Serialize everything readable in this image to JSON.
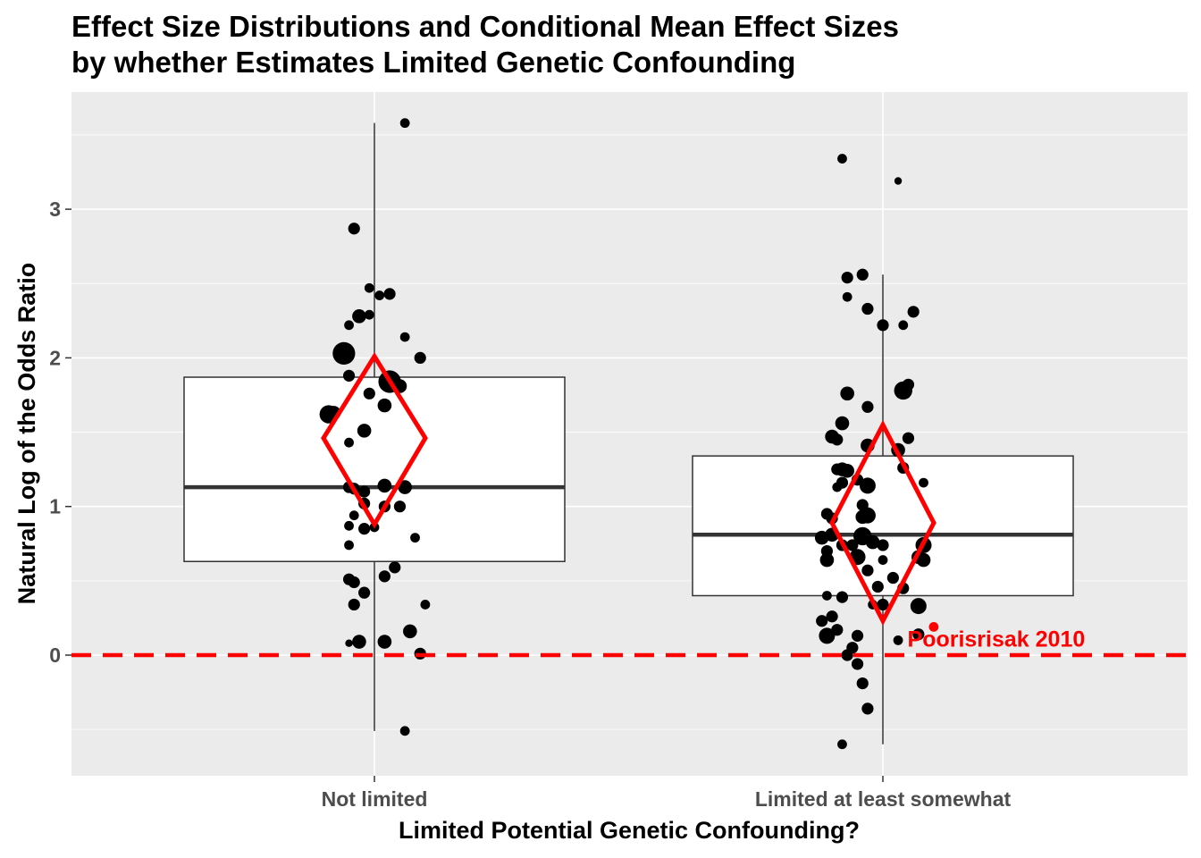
{
  "chart_data": {
    "type": "box",
    "title_lines": [
      "Effect Size Distributions and Conditional Mean Effect Sizes",
      "by whether Estimates Limited Genetic Confounding"
    ],
    "xlabel": "Limited Potential Genetic Confounding?",
    "ylabel": "Natural Log of the Odds Ratio",
    "ylim": [
      -0.8,
      3.8
    ],
    "yticks": [
      0,
      1,
      2,
      3
    ],
    "grid": true,
    "categories": [
      "Not limited",
      "Limited at least somewhat"
    ],
    "boxes": [
      {
        "category": "Not limited",
        "q1": 0.63,
        "median": 1.13,
        "q3": 1.87,
        "whisker_low": -0.51,
        "whisker_high": 3.58
      },
      {
        "category": "Limited at least somewhat",
        "q1": 0.4,
        "median": 0.81,
        "q3": 1.34,
        "whisker_low": -0.6,
        "whisker_high": 2.56
      }
    ],
    "mean_diamonds": [
      {
        "category": "Not limited",
        "mean": 1.46,
        "ci_low": 0.88,
        "ci_high": 2.01
      },
      {
        "category": "Limited at least somewhat",
        "mean": 0.89,
        "ci_low": 0.23,
        "ci_high": 1.55
      }
    ],
    "reference_line": {
      "y": 0,
      "color": "#ff0000",
      "style": "dashed"
    },
    "annotation": {
      "text": "Poorisrisak 2010",
      "x_category": "Limited at least somewhat",
      "x_offset": 0.1,
      "y": 0.19,
      "color": "#ff0000"
    },
    "points": [
      {
        "group": 0,
        "x": 0.96,
        "y": 2.87,
        "size": 1.5
      },
      {
        "group": 0,
        "x": 1.06,
        "y": 3.58,
        "size": 1
      },
      {
        "group": 0,
        "x": 0.99,
        "y": 2.47,
        "size": 1
      },
      {
        "group": 0,
        "x": 1.01,
        "y": 2.42,
        "size": 1
      },
      {
        "group": 0,
        "x": 1.03,
        "y": 2.43,
        "size": 1.5
      },
      {
        "group": 0,
        "x": 0.95,
        "y": 2.22,
        "size": 1
      },
      {
        "group": 0,
        "x": 0.97,
        "y": 2.28,
        "size": 2
      },
      {
        "group": 0,
        "x": 0.99,
        "y": 2.29,
        "size": 1
      },
      {
        "group": 0,
        "x": 1.06,
        "y": 2.14,
        "size": 1
      },
      {
        "group": 0,
        "x": 0.94,
        "y": 2.03,
        "size": 4
      },
      {
        "group": 0,
        "x": 1.09,
        "y": 2.0,
        "size": 1.5
      },
      {
        "group": 0,
        "x": 0.95,
        "y": 1.88,
        "size": 1.5
      },
      {
        "group": 0,
        "x": 1.03,
        "y": 1.84,
        "size": 4
      },
      {
        "group": 0,
        "x": 1.05,
        "y": 1.81,
        "size": 2
      },
      {
        "group": 0,
        "x": 0.99,
        "y": 1.76,
        "size": 1.5
      },
      {
        "group": 0,
        "x": 1.02,
        "y": 1.68,
        "size": 2
      },
      {
        "group": 0,
        "x": 0.91,
        "y": 1.62,
        "size": 3
      },
      {
        "group": 0,
        "x": 0.92,
        "y": 1.63,
        "size": 2
      },
      {
        "group": 0,
        "x": 0.98,
        "y": 1.51,
        "size": 2
      },
      {
        "group": 0,
        "x": 0.95,
        "y": 1.43,
        "size": 1
      },
      {
        "group": 0,
        "x": 0.95,
        "y": 1.13,
        "size": 1.5
      },
      {
        "group": 0,
        "x": 0.96,
        "y": 1.12,
        "size": 1.5
      },
      {
        "group": 0,
        "x": 1.02,
        "y": 1.14,
        "size": 2
      },
      {
        "group": 0,
        "x": 1.06,
        "y": 1.13,
        "size": 2
      },
      {
        "group": 0,
        "x": 0.98,
        "y": 1.1,
        "size": 1.5
      },
      {
        "group": 0,
        "x": 0.98,
        "y": 1.02,
        "size": 1.5
      },
      {
        "group": 0,
        "x": 1.02,
        "y": 1.0,
        "size": 1.5
      },
      {
        "group": 0,
        "x": 1.05,
        "y": 1.0,
        "size": 1.5
      },
      {
        "group": 0,
        "x": 0.95,
        "y": 0.87,
        "size": 1
      },
      {
        "group": 0,
        "x": 0.98,
        "y": 0.85,
        "size": 1.5
      },
      {
        "group": 0,
        "x": 1.0,
        "y": 0.86,
        "size": 1
      },
      {
        "group": 0,
        "x": 0.96,
        "y": 0.94,
        "size": 1
      },
      {
        "group": 0,
        "x": 1.08,
        "y": 0.79,
        "size": 1
      },
      {
        "group": 0,
        "x": 0.95,
        "y": 0.74,
        "size": 1
      },
      {
        "group": 0,
        "x": 1.04,
        "y": 0.59,
        "size": 1.5
      },
      {
        "group": 0,
        "x": 1.02,
        "y": 0.53,
        "size": 1.5
      },
      {
        "group": 0,
        "x": 0.95,
        "y": 0.51,
        "size": 1.5
      },
      {
        "group": 0,
        "x": 0.96,
        "y": 0.49,
        "size": 1.5
      },
      {
        "group": 0,
        "x": 0.98,
        "y": 0.42,
        "size": 1.5
      },
      {
        "group": 0,
        "x": 0.96,
        "y": 0.34,
        "size": 1.5
      },
      {
        "group": 0,
        "x": 1.1,
        "y": 0.34,
        "size": 1
      },
      {
        "group": 0,
        "x": 1.07,
        "y": 0.16,
        "size": 2
      },
      {
        "group": 0,
        "x": 0.97,
        "y": 0.09,
        "size": 2
      },
      {
        "group": 0,
        "x": 1.02,
        "y": 0.09,
        "size": 2
      },
      {
        "group": 0,
        "x": 0.95,
        "y": 0.08,
        "size": 0.5
      },
      {
        "group": 0,
        "x": 1.09,
        "y": 0.01,
        "size": 1.5
      },
      {
        "group": 0,
        "x": 1.06,
        "y": -0.51,
        "size": 1
      },
      {
        "group": 1,
        "x": 1.92,
        "y": 3.34,
        "size": 1
      },
      {
        "group": 1,
        "x": 2.03,
        "y": 3.19,
        "size": 0.5
      },
      {
        "group": 1,
        "x": 1.93,
        "y": 2.54,
        "size": 1.5
      },
      {
        "group": 1,
        "x": 1.96,
        "y": 2.56,
        "size": 1.5
      },
      {
        "group": 1,
        "x": 1.93,
        "y": 2.41,
        "size": 1
      },
      {
        "group": 1,
        "x": 1.97,
        "y": 2.33,
        "size": 1.5
      },
      {
        "group": 1,
        "x": 2.06,
        "y": 2.31,
        "size": 1.5
      },
      {
        "group": 1,
        "x": 2.0,
        "y": 2.22,
        "size": 1.5
      },
      {
        "group": 1,
        "x": 2.04,
        "y": 2.22,
        "size": 1
      },
      {
        "group": 1,
        "x": 2.05,
        "y": 1.82,
        "size": 1.5
      },
      {
        "group": 1,
        "x": 2.04,
        "y": 1.78,
        "size": 3
      },
      {
        "group": 1,
        "x": 1.93,
        "y": 1.76,
        "size": 2
      },
      {
        "group": 1,
        "x": 1.97,
        "y": 1.67,
        "size": 1.5
      },
      {
        "group": 1,
        "x": 1.92,
        "y": 1.56,
        "size": 2
      },
      {
        "group": 1,
        "x": 1.9,
        "y": 1.47,
        "size": 2
      },
      {
        "group": 1,
        "x": 1.91,
        "y": 1.45,
        "size": 1.5
      },
      {
        "group": 1,
        "x": 2.05,
        "y": 1.46,
        "size": 1.5
      },
      {
        "group": 1,
        "x": 1.97,
        "y": 1.41,
        "size": 2
      },
      {
        "group": 1,
        "x": 2.03,
        "y": 1.38,
        "size": 2
      },
      {
        "group": 1,
        "x": 2.04,
        "y": 1.26,
        "size": 1.5
      },
      {
        "group": 1,
        "x": 1.91,
        "y": 1.25,
        "size": 1.5
      },
      {
        "group": 1,
        "x": 1.92,
        "y": 1.25,
        "size": 2
      },
      {
        "group": 1,
        "x": 1.93,
        "y": 1.24,
        "size": 2
      },
      {
        "group": 1,
        "x": 1.92,
        "y": 1.16,
        "size": 1.5
      },
      {
        "group": 1,
        "x": 1.97,
        "y": 1.14,
        "size": 2.5
      },
      {
        "group": 1,
        "x": 1.95,
        "y": 1.18,
        "size": 1.5
      },
      {
        "group": 1,
        "x": 1.91,
        "y": 1.13,
        "size": 1
      },
      {
        "group": 1,
        "x": 2.08,
        "y": 1.16,
        "size": 1
      },
      {
        "group": 1,
        "x": 1.96,
        "y": 1.01,
        "size": 1.5
      },
      {
        "group": 1,
        "x": 1.97,
        "y": 0.94,
        "size": 2.5
      },
      {
        "group": 1,
        "x": 1.89,
        "y": 0.95,
        "size": 1.5
      },
      {
        "group": 1,
        "x": 1.9,
        "y": 0.92,
        "size": 1.5
      },
      {
        "group": 1,
        "x": 1.96,
        "y": 0.93,
        "size": 2
      },
      {
        "group": 1,
        "x": 1.88,
        "y": 0.79,
        "size": 2
      },
      {
        "group": 1,
        "x": 1.9,
        "y": 0.81,
        "size": 2
      },
      {
        "group": 1,
        "x": 1.96,
        "y": 0.8,
        "size": 3
      },
      {
        "group": 1,
        "x": 1.98,
        "y": 0.76,
        "size": 2
      },
      {
        "group": 1,
        "x": 2.0,
        "y": 0.74,
        "size": 1.5
      },
      {
        "group": 1,
        "x": 2.08,
        "y": 0.74,
        "size": 2.5
      },
      {
        "group": 1,
        "x": 2.07,
        "y": 0.66,
        "size": 2
      },
      {
        "group": 1,
        "x": 2.08,
        "y": 0.64,
        "size": 2
      },
      {
        "group": 1,
        "x": 1.92,
        "y": 0.74,
        "size": 1.5
      },
      {
        "group": 1,
        "x": 1.94,
        "y": 0.74,
        "size": 1.5
      },
      {
        "group": 1,
        "x": 1.95,
        "y": 0.66,
        "size": 2.5
      },
      {
        "group": 1,
        "x": 1.89,
        "y": 0.64,
        "size": 2
      },
      {
        "group": 1,
        "x": 1.89,
        "y": 0.7,
        "size": 1.5
      },
      {
        "group": 1,
        "x": 2.0,
        "y": 0.64,
        "size": 1
      },
      {
        "group": 1,
        "x": 1.97,
        "y": 0.57,
        "size": 1.5
      },
      {
        "group": 1,
        "x": 2.02,
        "y": 0.52,
        "size": 1.5
      },
      {
        "group": 1,
        "x": 1.99,
        "y": 0.46,
        "size": 1.5
      },
      {
        "group": 1,
        "x": 2.04,
        "y": 0.45,
        "size": 1.5
      },
      {
        "group": 1,
        "x": 1.89,
        "y": 0.4,
        "size": 1
      },
      {
        "group": 1,
        "x": 1.92,
        "y": 0.39,
        "size": 1.5
      },
      {
        "group": 1,
        "x": 1.98,
        "y": 0.34,
        "size": 1
      },
      {
        "group": 1,
        "x": 2.0,
        "y": 0.34,
        "size": 1.5
      },
      {
        "group": 1,
        "x": 2.07,
        "y": 0.33,
        "size": 2.5
      },
      {
        "group": 1,
        "x": 1.88,
        "y": 0.23,
        "size": 1.5
      },
      {
        "group": 1,
        "x": 1.9,
        "y": 0.26,
        "size": 1.5
      },
      {
        "group": 1,
        "x": 1.91,
        "y": 0.17,
        "size": 1.5
      },
      {
        "group": 1,
        "x": 1.89,
        "y": 0.13,
        "size": 2.5
      },
      {
        "group": 1,
        "x": 1.95,
        "y": 0.13,
        "size": 1.5
      },
      {
        "group": 1,
        "x": 2.03,
        "y": 0.1,
        "size": 1
      },
      {
        "group": 1,
        "x": 2.07,
        "y": 0.14,
        "size": 1.5
      },
      {
        "group": 1,
        "x": 1.94,
        "y": 0.05,
        "size": 1.5
      },
      {
        "group": 1,
        "x": 1.93,
        "y": 0.0,
        "size": 1.5
      },
      {
        "group": 1,
        "x": 1.95,
        "y": -0.06,
        "size": 1.5
      },
      {
        "group": 1,
        "x": 1.96,
        "y": -0.19,
        "size": 1.5
      },
      {
        "group": 1,
        "x": 1.97,
        "y": -0.36,
        "size": 1.5
      },
      {
        "group": 1,
        "x": 1.92,
        "y": -0.6,
        "size": 1
      }
    ],
    "highlight_point": {
      "group": 1,
      "x": 2.1,
      "y": 0.19,
      "size": 1,
      "color": "#ff0000"
    }
  },
  "colors": {
    "panel": "#ebebeb",
    "grid": "#ffffff",
    "box_fill": "#ffffff",
    "box_stroke": "#333333",
    "diamond": "#ff0000",
    "points": "#000000",
    "tick_text": "#4d4d4d"
  }
}
